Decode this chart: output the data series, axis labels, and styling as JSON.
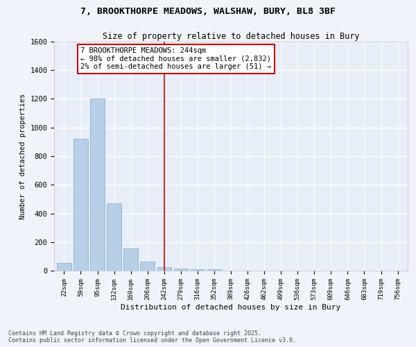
{
  "title1": "7, BROOKTHORPE MEADOWS, WALSHAW, BURY, BL8 3BF",
  "title2": "Size of property relative to detached houses in Bury",
  "xlabel": "Distribution of detached houses by size in Bury",
  "ylabel": "Number of detached properties",
  "categories": [
    "22sqm",
    "59sqm",
    "95sqm",
    "132sqm",
    "169sqm",
    "206sqm",
    "242sqm",
    "279sqm",
    "316sqm",
    "352sqm",
    "389sqm",
    "426sqm",
    "462sqm",
    "499sqm",
    "536sqm",
    "573sqm",
    "609sqm",
    "646sqm",
    "683sqm",
    "719sqm",
    "756sqm"
  ],
  "values": [
    55,
    920,
    1200,
    470,
    155,
    62,
    25,
    15,
    10,
    10,
    0,
    0,
    0,
    0,
    0,
    0,
    0,
    0,
    0,
    0,
    0
  ],
  "bar_color": "#b8cfe8",
  "bar_edge_color": "#7aaac8",
  "vline_index": 6,
  "vline_color": "#cc0000",
  "annotation_text": "7 BROOKTHORPE MEADOWS: 244sqm\n← 98% of detached houses are smaller (2,832)\n2% of semi-detached houses are larger (51) →",
  "annotation_box_color": "#ffffff",
  "annotation_box_edge": "#cc0000",
  "ylim": [
    0,
    1600
  ],
  "yticks": [
    0,
    200,
    400,
    600,
    800,
    1000,
    1200,
    1400,
    1600
  ],
  "bg_color": "#f0f4fa",
  "plot_bg_color": "#e8eef8",
  "grid_color": "#ffffff",
  "footer1": "Contains HM Land Registry data © Crown copyright and database right 2025.",
  "footer2": "Contains public sector information licensed under the Open Government Licence v3.0."
}
